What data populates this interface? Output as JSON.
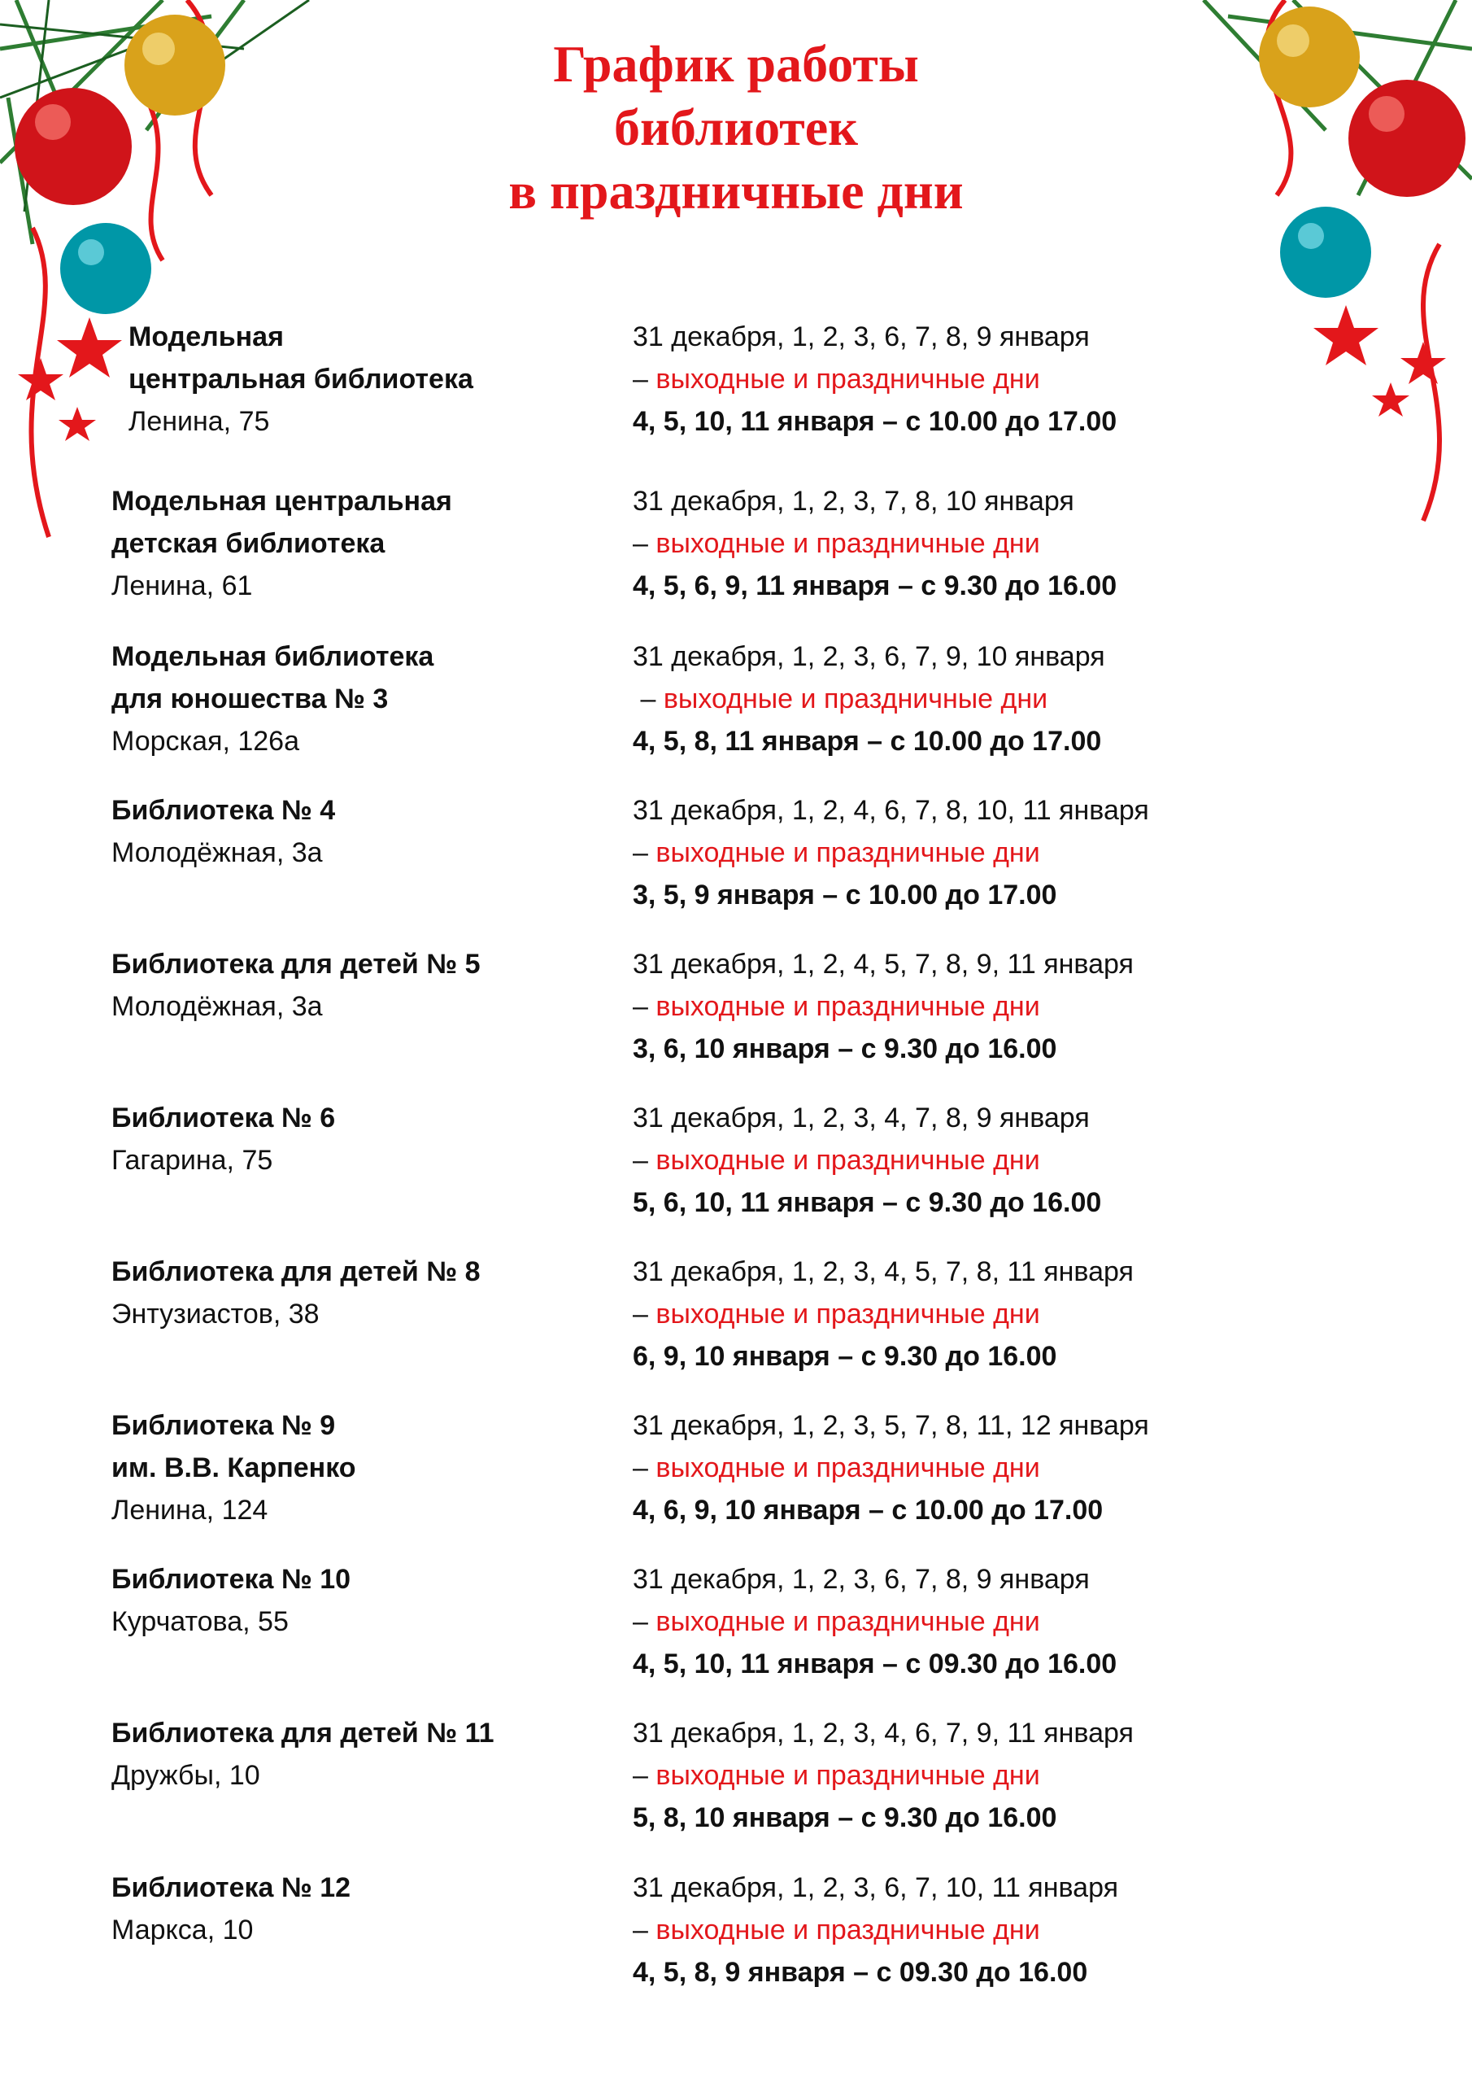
{
  "title": [
    "График работы",
    "библиотек",
    "в праздничные дни"
  ],
  "colors": {
    "title": "#e3171b",
    "closed_label": "#e3171b",
    "text": "#111111"
  },
  "closed_label": "выходные и праздничные дни",
  "dash": "–",
  "libraries": [
    {
      "name": [
        "Модельная",
        "центральная библиотека"
      ],
      "address": "Ленина, 75",
      "closed": "31 декабря, 1, 2, 3, 6, 7, 8, 9 января",
      "open": "4, 5, 10, 11 января – с 10.00 до 17.00"
    },
    {
      "name": [
        "Модельная центральная",
        "детская библиотека"
      ],
      "address": "Ленина, 61",
      "closed": "31 декабря, 1, 2, 3, 7, 8, 10 января",
      "open": "4, 5, 6, 9, 11 января – с 9.30 до 16.00"
    },
    {
      "name": [
        "Модельная библиотека",
        "для юношества № 3"
      ],
      "address": "Морская, 126а",
      "closed": "31 декабря, 1, 2, 3, 6, 7, 9, 10 января",
      "open": "4, 5, 8, 11 января – с 10.00 до 17.00"
    },
    {
      "name": [
        "Библиотека № 4"
      ],
      "address": "Молодёжная, 3а",
      "closed": "31 декабря,  1, 2, 4, 6, 7, 8, 10, 11 января",
      "open": "3, 5, 9 января – с 10.00 до 17.00"
    },
    {
      "name": [
        "Библиотека для детей № 5"
      ],
      "address": "Молодёжная, 3а",
      "closed": "31 декабря, 1, 2, 4, 5, 7, 8, 9, 11 января",
      "open": "3, 6, 10 января – с 9.30 до 16.00"
    },
    {
      "name": [
        "Библиотека № 6"
      ],
      "address": "Гагарина, 75",
      "closed": "31 декабря,  1, 2, 3, 4, 7, 8, 9 января",
      "open": "5, 6, 10, 11 января – с 9.30 до 16.00"
    },
    {
      "name": [
        "Библиотека для детей № 8"
      ],
      "address": "Энтузиастов, 38",
      "closed": "31 декабря, 1, 2, 3, 4, 5, 7, 8, 11 января",
      "open": "6, 9, 10 января – с 9.30 до 16.00"
    },
    {
      "name": [
        "Библиотека № 9",
        "им. В.В. Карпенко"
      ],
      "address": "Ленина, 124",
      "closed": "31 декабря, 1, 2, 3, 5, 7, 8, 11, 12 января",
      "open": "4, 6, 9, 10 января – с 10.00 до 17.00"
    },
    {
      "name": [
        "Библиотека № 10"
      ],
      "address": "Курчатова, 55",
      "closed": "31 декабря,  1, 2, 3, 6, 7, 8, 9 января",
      "open": "4, 5, 10, 11 января – с 09.30 до 16.00"
    },
    {
      "name": [
        "Библиотека для детей № 11"
      ],
      "address": "Дружбы, 10",
      "closed": "31 декабря,  1, 2, 3, 4, 6, 7, 9, 11 января",
      "open": "5, 8, 10 января – с 9.30 до 16.00"
    },
    {
      "name": [
        "Библиотека № 12"
      ],
      "address": "Маркса, 10",
      "closed": "31 декабря, 1, 2, 3, 6, 7, 10, 11 января",
      "open": "4, 5, 8, 9 января – с 09.30 до 16.00"
    }
  ]
}
